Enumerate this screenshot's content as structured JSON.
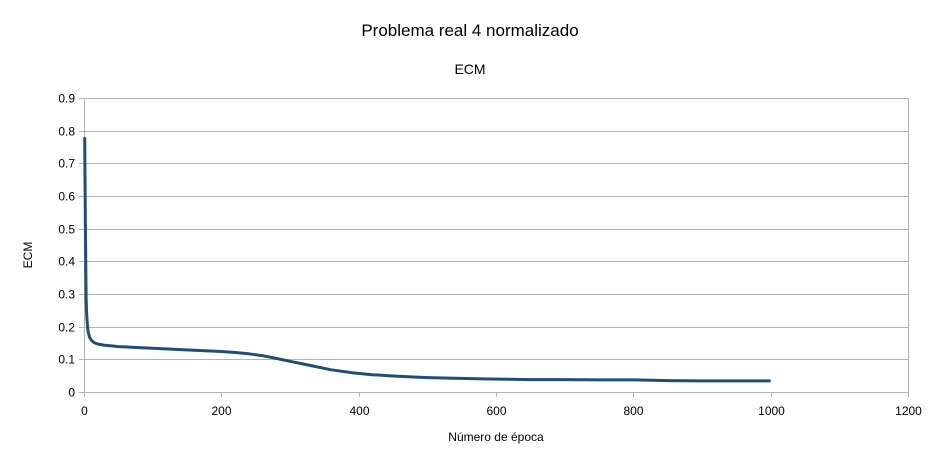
{
  "chart_data": {
    "type": "line",
    "title": "Problema real 4 normalizado",
    "subtitle": "ECM",
    "xlabel": "Número de época",
    "ylabel": "ECM",
    "xlim": [
      0,
      1200
    ],
    "ylim": [
      0,
      0.9
    ],
    "x_ticks": [
      "0",
      "200",
      "400",
      "600",
      "800",
      "1000",
      "1200"
    ],
    "y_ticks": [
      "0",
      "0.1",
      "0.2",
      "0.3",
      "0.4",
      "0.5",
      "0.6",
      "0.7",
      "0.8",
      "0.9"
    ],
    "grid": true,
    "legend": "none",
    "series": [
      {
        "color": "#1f4e79",
        "x": [
          1,
          2,
          3,
          4,
          5,
          6,
          8,
          10,
          13,
          16,
          20,
          25,
          30,
          40,
          50,
          60,
          80,
          100,
          130,
          160,
          200,
          220,
          240,
          260,
          280,
          300,
          330,
          360,
          390,
          420,
          450,
          480,
          500,
          540,
          580,
          620,
          650,
          700,
          750,
          800,
          850,
          900,
          950,
          1000
        ],
        "y": [
          0.78,
          0.5,
          0.29,
          0.235,
          0.205,
          0.185,
          0.168,
          0.16,
          0.154,
          0.15,
          0.147,
          0.145,
          0.143,
          0.141,
          0.139,
          0.138,
          0.136,
          0.134,
          0.131,
          0.128,
          0.124,
          0.121,
          0.117,
          0.111,
          0.103,
          0.094,
          0.081,
          0.068,
          0.059,
          0.053,
          0.049,
          0.046,
          0.044,
          0.042,
          0.04,
          0.039,
          0.038,
          0.038,
          0.037,
          0.037,
          0.035,
          0.034,
          0.034,
          0.034
        ]
      }
    ]
  }
}
